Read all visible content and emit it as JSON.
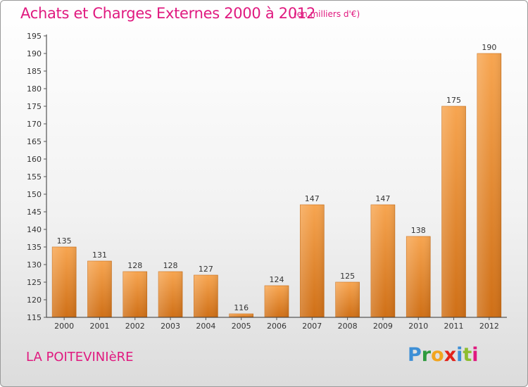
{
  "title": "Achats et Charges Externes 2000 à 2012",
  "subtitle": "(en milliers d'€)",
  "commune": "LA POITEVINIèRE",
  "logo": {
    "letters": [
      "P",
      "r",
      "o",
      "x",
      "i",
      "t",
      "i"
    ]
  },
  "colors": {
    "accent": "#e0197f",
    "bar_light": "#f7a550",
    "bar_dark": "#cf6f16",
    "axis": "#333333",
    "grid_tick": "#555555"
  },
  "chart_data": {
    "type": "bar",
    "categories": [
      "2000",
      "2001",
      "2002",
      "2003",
      "2004",
      "2005",
      "2006",
      "2007",
      "2008",
      "2009",
      "2010",
      "2011",
      "2012"
    ],
    "values": [
      135,
      131,
      128,
      128,
      127,
      116,
      124,
      147,
      125,
      147,
      138,
      175,
      190
    ],
    "data_labels": [
      "135",
      "131",
      "128",
      "128",
      "127",
      "116",
      "124",
      "147",
      "125",
      "147",
      "138",
      "175",
      "190"
    ],
    "yticks": [
      "115",
      "120",
      "125",
      "130",
      "135",
      "140",
      "145",
      "150",
      "155",
      "160",
      "165",
      "170",
      "175",
      "180",
      "185",
      "190",
      "195"
    ],
    "ylim": [
      115,
      195
    ],
    "xlabel": "",
    "ylabel": "",
    "grid": false,
    "legend": "none"
  }
}
